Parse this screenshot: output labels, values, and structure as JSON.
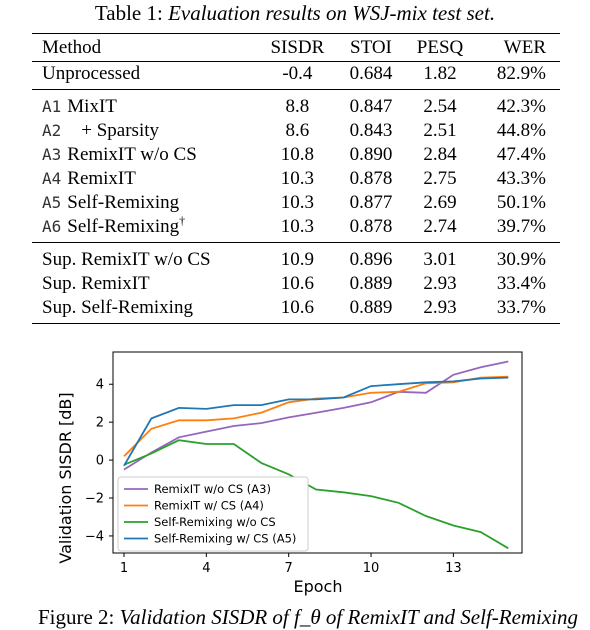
{
  "table_caption": {
    "label": "Table 1:",
    "text": "Evaluation results on WSJ-mix test set."
  },
  "table": {
    "headers": [
      "Method",
      "SISDR",
      "STOI",
      "PESQ",
      "WER"
    ],
    "rows": [
      {
        "id": "",
        "method": "Unprocessed",
        "sup": "",
        "sisdr": "-0.4",
        "stoi": "0.684",
        "pesq": "1.82",
        "wer": "82.9%",
        "bold": []
      },
      {
        "id": "A1",
        "method": "MixIT",
        "sup": "",
        "sisdr": "8.8",
        "stoi": "0.847",
        "pesq": "2.54",
        "wer": "42.3%",
        "bold": []
      },
      {
        "id": "A2",
        "method": "+ Sparsity",
        "sup": "",
        "sisdr": "8.6",
        "stoi": "0.843",
        "pesq": "2.51",
        "wer": "44.8%",
        "bold": []
      },
      {
        "id": "A3",
        "method": "RemixIT w/o CS",
        "sup": "",
        "sisdr": "10.8",
        "stoi": "0.890",
        "pesq": "2.84",
        "wer": "47.4%",
        "bold": [
          "sisdr",
          "stoi",
          "pesq"
        ]
      },
      {
        "id": "A4",
        "method": "RemixIT",
        "sup": "",
        "sisdr": "10.3",
        "stoi": "0.878",
        "pesq": "2.75",
        "wer": "43.3%",
        "bold": []
      },
      {
        "id": "A5",
        "method": "Self-Remixing",
        "sup": "",
        "sisdr": "10.3",
        "stoi": "0.877",
        "pesq": "2.69",
        "wer": "50.1%",
        "bold": []
      },
      {
        "id": "A6",
        "method": "Self-Remixing",
        "sup": "†",
        "sisdr": "10.3",
        "stoi": "0.878",
        "pesq": "2.74",
        "wer": "39.7%",
        "bold": [
          "wer"
        ]
      },
      {
        "id": "",
        "method": "Sup. RemixIT w/o CS",
        "sup": "",
        "sisdr": "10.9",
        "stoi": "0.896",
        "pesq": "3.01",
        "wer": "30.9%",
        "bold": []
      },
      {
        "id": "",
        "method": "Sup. RemixIT",
        "sup": "",
        "sisdr": "10.6",
        "stoi": "0.889",
        "pesq": "2.93",
        "wer": "33.4%",
        "bold": []
      },
      {
        "id": "",
        "method": "Sup. Self-Remixing",
        "sup": "",
        "sisdr": "10.6",
        "stoi": "0.889",
        "pesq": "2.93",
        "wer": "33.7%",
        "bold": []
      }
    ]
  },
  "figure_caption": {
    "label": "Figure 2:",
    "text": "Validation SISDR of f_θ of RemixIT and Self-Remixing"
  },
  "chart_data": {
    "type": "line",
    "title": "",
    "xlabel": "Epoch",
    "ylabel": "Validation SISDR [dB]",
    "xlim": [
      0.6,
      15.5
    ],
    "ylim": [
      -4.9,
      5.7
    ],
    "xticks": [
      1,
      4,
      7,
      10,
      13
    ],
    "yticks": [
      -4,
      -2,
      0,
      2,
      4
    ],
    "grid": false,
    "legend_position": "lower-left",
    "series": [
      {
        "name": "RemixIT w/o CS (A3)",
        "color": "#9467bd",
        "x": [
          1,
          2,
          3,
          4,
          5,
          6,
          7,
          8,
          9,
          10,
          11,
          12,
          13,
          14,
          15
        ],
        "y": [
          -0.5,
          0.4,
          1.2,
          1.5,
          1.8,
          1.95,
          2.25,
          2.5,
          2.75,
          3.05,
          3.6,
          3.55,
          4.5,
          4.9,
          5.2
        ]
      },
      {
        "name": "RemixIT w/ CS (A4)",
        "color": "#ff7f0e",
        "x": [
          1,
          2,
          3,
          4,
          5,
          6,
          7,
          8,
          9,
          10,
          11,
          12,
          13,
          14,
          15
        ],
        "y": [
          0.2,
          1.65,
          2.1,
          2.1,
          2.2,
          2.5,
          3.05,
          3.25,
          3.3,
          3.55,
          3.6,
          4.05,
          4.1,
          4.35,
          4.4
        ]
      },
      {
        "name": "Self-Remixing w/o CS",
        "color": "#2ca02c",
        "x": [
          1,
          2,
          3,
          4,
          5,
          6,
          7,
          8,
          9,
          10,
          11,
          12,
          13,
          14,
          15
        ],
        "y": [
          -0.25,
          0.35,
          1.05,
          0.85,
          0.85,
          -0.15,
          -0.75,
          -1.55,
          -1.7,
          -1.9,
          -2.25,
          -2.95,
          -3.45,
          -3.8,
          -4.65
        ]
      },
      {
        "name": "Self-Remixing w/ CS (A5)",
        "color": "#1f77b4",
        "x": [
          1,
          2,
          3,
          4,
          5,
          6,
          7,
          8,
          9,
          10,
          11,
          12,
          13,
          14,
          15
        ],
        "y": [
          -0.3,
          2.2,
          2.75,
          2.7,
          2.9,
          2.9,
          3.2,
          3.2,
          3.3,
          3.9,
          4.0,
          4.1,
          4.15,
          4.3,
          4.35
        ]
      }
    ]
  }
}
